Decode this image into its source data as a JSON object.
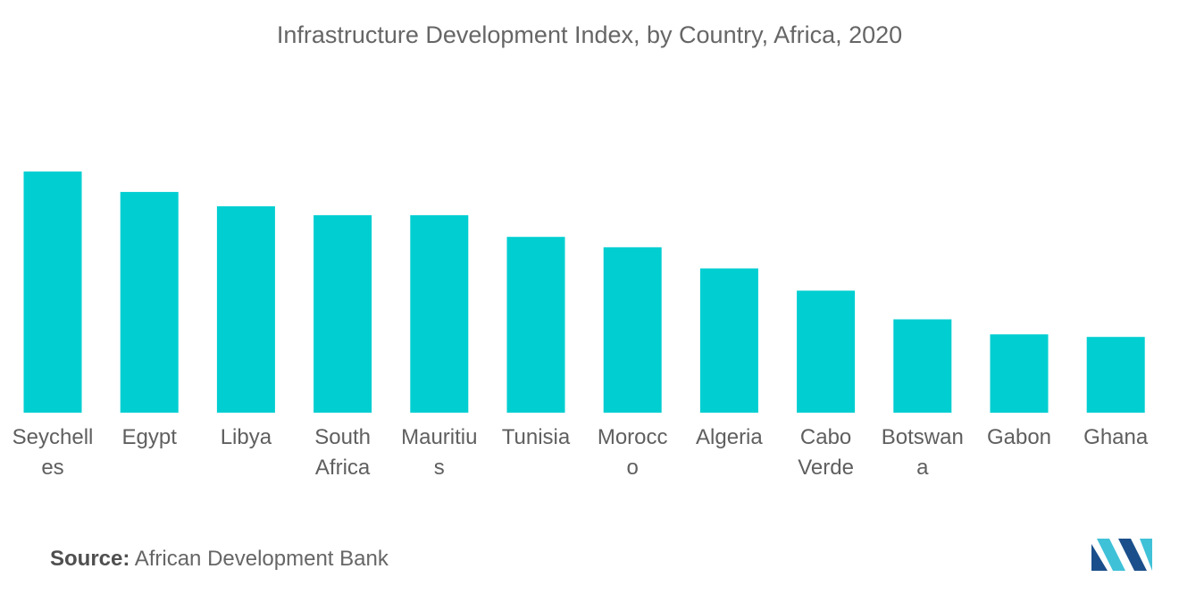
{
  "chart_data": {
    "type": "bar",
    "title": "Infrastructure Development Index, by Country,  Africa, 2020",
    "categories": [
      [
        "Seychell",
        "es"
      ],
      [
        "Egypt"
      ],
      [
        "Libya"
      ],
      [
        "South",
        "Africa"
      ],
      [
        "Mauritiu",
        "s"
      ],
      [
        "Tunisia"
      ],
      [
        "Morocc",
        "o"
      ],
      [
        "Algeria"
      ],
      [
        "Cabo",
        "Verde"
      ],
      [
        "Botswan",
        "a"
      ],
      [
        "Gabon"
      ],
      [
        "Ghana"
      ]
    ],
    "values": [
      100,
      91.5,
      85.6,
      81.9,
      81.9,
      72.9,
      68.6,
      59.8,
      50.6,
      38.7,
      32.5,
      31.4
    ],
    "ylim": [
      0,
      100
    ],
    "xlabel": "",
    "ylabel": "",
    "grid": false,
    "legend": "none",
    "bar_color": "#00ced1"
  },
  "source": {
    "label": "Source:",
    "text": "African Development Bank"
  },
  "colors": {
    "logo_dark": "#1a4f8b",
    "logo_light": "#3fc1d8"
  }
}
